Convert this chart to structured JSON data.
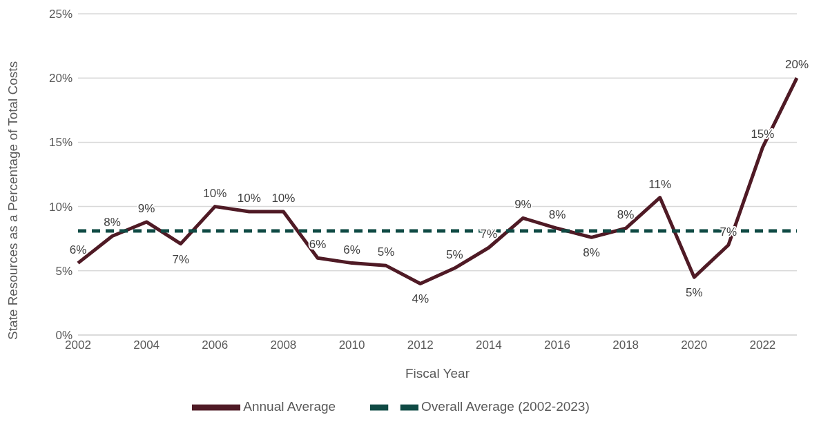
{
  "chart_data": {
    "type": "line",
    "xlabel": "Fiscal Year",
    "ylabel": "State Resources as a Percentage of Total Costs",
    "categories": [
      "2002",
      null,
      "2004",
      null,
      "2006",
      null,
      "2008",
      null,
      "2010",
      null,
      "2012",
      null,
      "2014",
      null,
      "2016",
      null,
      "2018",
      null,
      "2020",
      null,
      "2022",
      null
    ],
    "series": [
      {
        "name": "Annual Average",
        "color": "#4f1a25",
        "line_style": "solid",
        "values": [
          5.6,
          7.7,
          8.8,
          7.1,
          10.0,
          9.6,
          9.6,
          6.0,
          5.6,
          5.4,
          4.0,
          5.2,
          6.8,
          9.1,
          8.3,
          7.6,
          8.3,
          10.7,
          4.5,
          7.0,
          14.6,
          20.0
        ],
        "value_labels": [
          "6%",
          "8%",
          "9%",
          "7%",
          "10%",
          "10%",
          "10%",
          "6%",
          "6%",
          "5%",
          "4%",
          "5%",
          "7%",
          "9%",
          "8%",
          "8%",
          "8%",
          "11%",
          "5%",
          "7%",
          "15%",
          "20%"
        ]
      },
      {
        "name": "Overall Average (2002-2023)",
        "color": "#0f4a44",
        "line_style": "dashed",
        "values": [
          8.1,
          8.1,
          8.1,
          8.1,
          8.1,
          8.1,
          8.1,
          8.1,
          8.1,
          8.1,
          8.1,
          8.1,
          8.1,
          8.1,
          8.1,
          8.1,
          8.1,
          8.1,
          8.1,
          8.1,
          8.1,
          8.1
        ]
      }
    ],
    "ylim": [
      0,
      25
    ],
    "yticks": [
      {
        "value": 0,
        "label": "0%"
      },
      {
        "value": 5,
        "label": "5%"
      },
      {
        "value": 10,
        "label": "10%"
      },
      {
        "value": 15,
        "label": "15%"
      },
      {
        "value": 20,
        "label": "20%"
      },
      {
        "value": 25,
        "label": "25%"
      }
    ],
    "grid": "y",
    "legend": "bottom",
    "marker": "none"
  }
}
